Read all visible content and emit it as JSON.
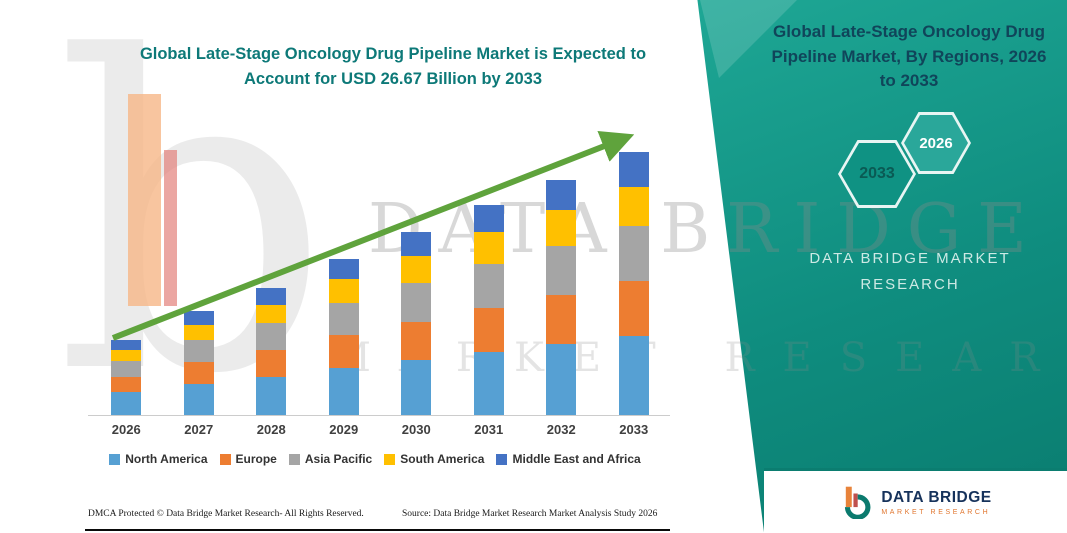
{
  "header": {
    "title_line1": "Global Late-Stage Oncology Drug Pipeline Market is Expected to",
    "title_line2": "Account for USD 26.67 Billion by 2033"
  },
  "chart_data": {
    "type": "bar",
    "stacked": true,
    "title": "Global Late-Stage Oncology Drug Pipeline Market is Expected to Account for USD 26.67 Billion by 2033",
    "unit": "USD Billion",
    "categories": [
      "2026",
      "2027",
      "2028",
      "2029",
      "2030",
      "2031",
      "2032",
      "2033"
    ],
    "series": [
      {
        "name": "North America",
        "color": "#56a0d3",
        "values": [
          2.3,
          3.2,
          3.9,
          4.8,
          5.6,
          6.4,
          7.2,
          8.0
        ]
      },
      {
        "name": "Europe",
        "color": "#ed7d31",
        "values": [
          1.6,
          2.2,
          2.7,
          3.3,
          3.9,
          4.5,
          5.0,
          5.6
        ]
      },
      {
        "name": "Asia Pacific",
        "color": "#a5a5a5",
        "values": [
          1.6,
          2.2,
          2.7,
          3.3,
          3.9,
          4.5,
          5.0,
          5.6
        ]
      },
      {
        "name": "South America",
        "color": "#ffc000",
        "values": [
          1.1,
          1.6,
          1.9,
          2.4,
          2.8,
          3.2,
          3.6,
          4.0
        ]
      },
      {
        "name": "Middle East and Africa",
        "color": "#4472c4",
        "values": [
          1.0,
          1.4,
          1.7,
          2.1,
          2.4,
          2.7,
          3.1,
          3.5
        ]
      }
    ],
    "ylim": [
      0,
      30
    ],
    "grid": false,
    "legend_position": "bottom",
    "trend_arrow_color": "#5fa33c",
    "annotations": [
      "upward green trend arrow across bars"
    ],
    "note": "series values estimated from bar heights; 2033 total equals USD 26.67 billion"
  },
  "watermark": {
    "row1": "DATA BRIDGE",
    "row2": "MARKET RESEARCH",
    "letter_b": "b"
  },
  "side_panel": {
    "title": "Global Late-Stage Oncology Drug Pipeline Market, By Regions, 2026 to 2033",
    "hexagons": [
      {
        "label": "2033"
      },
      {
        "label": "2026"
      }
    ],
    "brand_line1": "DATA BRIDGE MARKET",
    "brand_line2": "RESEARCH",
    "bg_color": "#15a192",
    "title_color": "#10455a"
  },
  "logo": {
    "name": "DATA BRIDGE",
    "tagline": "MARKET RESEARCH"
  },
  "footer": {
    "left": "DMCA Protected © Data Bridge Market Research-  All Rights Reserved.",
    "source": "Source: Data Bridge Market Research  Market Analysis Study 2026"
  }
}
